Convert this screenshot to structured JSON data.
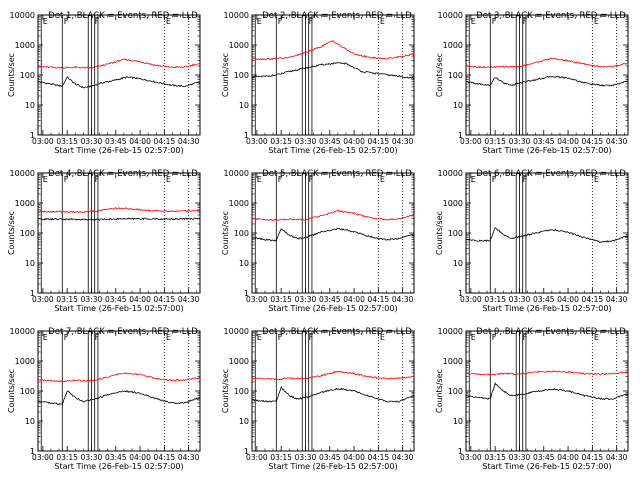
{
  "figure": {
    "xlabel_template": "Start Time ({start})",
    "start": "26-Feb-15 02:57:00",
    "ylabel": "Counts/sec",
    "x_ticks": [
      "03:00",
      "03:15",
      "03:30",
      "03:45",
      "04:00",
      "04:15",
      "04:30"
    ],
    "y_ticks": [
      "1",
      "10",
      "100",
      "1000",
      "10000"
    ],
    "marker_letters": [
      "E",
      "F",
      "F",
      "E"
    ],
    "colors": {
      "events": "#000000",
      "lld": "#ff0000",
      "axes": "#000000"
    }
  },
  "chart_data": [
    {
      "type": "line",
      "title": "Det 1, BLACK = Events, RED = LLD",
      "xlabel": "Start Time (26-Feb-15 02:57:00)",
      "ylabel": "Counts/sec",
      "yscale": "log",
      "ylim": [
        1,
        10000
      ],
      "xlim": [
        "02:57",
        "04:37"
      ],
      "series": [
        {
          "name": "Events",
          "color": "#000000",
          "x": [
            "02:57",
            "03:05",
            "03:12",
            "03:15",
            "03:20",
            "03:25",
            "03:30",
            "03:35",
            "03:45",
            "03:52",
            "04:00",
            "04:10",
            "04:20",
            "04:28",
            "04:35"
          ],
          "y": [
            60,
            50,
            42,
            85,
            50,
            38,
            42,
            52,
            68,
            85,
            75,
            58,
            45,
            42,
            55
          ]
        },
        {
          "name": "LLD",
          "color": "#ff0000",
          "x": [
            "02:57",
            "03:05",
            "03:12",
            "03:20",
            "03:30",
            "03:40",
            "03:50",
            "04:00",
            "04:10",
            "04:20",
            "04:28",
            "04:35"
          ],
          "y": [
            190,
            180,
            175,
            180,
            170,
            230,
            330,
            280,
            210,
            180,
            185,
            230
          ]
        }
      ]
    },
    {
      "type": "line",
      "title": "Det 2, BLACK = Events, RED = LLD",
      "xlabel": "Start Time (26-Feb-15 02:57:00)",
      "ylabel": "Counts/sec",
      "yscale": "log",
      "ylim": [
        1,
        10000
      ],
      "xlim": [
        "02:57",
        "04:37"
      ],
      "series": [
        {
          "name": "Events",
          "color": "#000000",
          "x": [
            "02:57",
            "03:05",
            "03:12",
            "03:20",
            "03:30",
            "03:40",
            "03:50",
            "03:55",
            "04:05",
            "04:15",
            "04:25",
            "04:35"
          ],
          "y": [
            85,
            90,
            100,
            130,
            170,
            220,
            250,
            240,
            130,
            110,
            95,
            80
          ]
        },
        {
          "name": "LLD",
          "color": "#ff0000",
          "x": [
            "02:57",
            "03:05",
            "03:12",
            "03:20",
            "03:30",
            "03:40",
            "03:47",
            "03:52",
            "04:00",
            "04:10",
            "04:20",
            "04:30",
            "04:35"
          ],
          "y": [
            350,
            340,
            350,
            380,
            550,
            900,
            1400,
            900,
            500,
            380,
            350,
            420,
            480
          ]
        }
      ]
    },
    {
      "type": "line",
      "title": "Det 3, BLACK = Events, RED = LLD",
      "xlabel": "Start Time (26-Feb-15 02:57:00)",
      "ylabel": "Counts/sec",
      "yscale": "log",
      "ylim": [
        1,
        10000
      ],
      "xlim": [
        "02:57",
        "04:37"
      ],
      "series": [
        {
          "name": "Events",
          "color": "#000000",
          "x": [
            "02:57",
            "03:05",
            "03:12",
            "03:15",
            "03:20",
            "03:25",
            "03:30",
            "03:40",
            "03:50",
            "04:00",
            "04:10",
            "04:20",
            "04:28",
            "04:35"
          ],
          "y": [
            60,
            50,
            45,
            85,
            55,
            45,
            55,
            70,
            90,
            80,
            55,
            45,
            45,
            60
          ]
        },
        {
          "name": "LLD",
          "color": "#ff0000",
          "x": [
            "02:57",
            "03:05",
            "03:12",
            "03:20",
            "03:30",
            "03:40",
            "03:50",
            "04:00",
            "04:10",
            "04:20",
            "04:28",
            "04:35"
          ],
          "y": [
            200,
            185,
            180,
            190,
            190,
            260,
            360,
            300,
            230,
            190,
            190,
            240
          ]
        }
      ]
    },
    {
      "type": "line",
      "title": "Det 4, BLACK = Events, RED = LLD",
      "xlabel": "Start Time (26-Feb-15 02:57:00)",
      "ylabel": "Counts/sec",
      "yscale": "log",
      "ylim": [
        1,
        10000
      ],
      "xlim": [
        "02:57",
        "04:37"
      ],
      "series": [
        {
          "name": "Events",
          "color": "#000000",
          "x": [
            "02:57",
            "03:15",
            "03:30",
            "03:45",
            "04:00",
            "04:15",
            "04:35"
          ],
          "y": [
            290,
            285,
            280,
            295,
            300,
            290,
            300
          ]
        },
        {
          "name": "LLD",
          "color": "#ff0000",
          "x": [
            "02:57",
            "03:10",
            "03:25",
            "03:35",
            "03:45",
            "03:55",
            "04:05",
            "04:20",
            "04:35"
          ],
          "y": [
            520,
            510,
            500,
            560,
            680,
            640,
            560,
            530,
            560
          ]
        }
      ]
    },
    {
      "type": "line",
      "title": "Det 5, BLACK = Events, RED = LLD",
      "xlabel": "Start Time (26-Feb-15 02:57:00)",
      "ylabel": "Counts/sec",
      "yscale": "log",
      "ylim": [
        1,
        10000
      ],
      "xlim": [
        "02:57",
        "04:37"
      ],
      "series": [
        {
          "name": "Events",
          "color": "#000000",
          "x": [
            "02:57",
            "03:05",
            "03:12",
            "03:15",
            "03:20",
            "03:25",
            "03:30",
            "03:40",
            "03:50",
            "04:00",
            "04:10",
            "04:20",
            "04:28",
            "04:35"
          ],
          "y": [
            70,
            60,
            55,
            140,
            85,
            65,
            70,
            110,
            140,
            110,
            75,
            60,
            65,
            85
          ]
        },
        {
          "name": "LLD",
          "color": "#ff0000",
          "x": [
            "02:57",
            "03:05",
            "03:12",
            "03:20",
            "03:30",
            "03:40",
            "03:50",
            "04:00",
            "04:10",
            "04:20",
            "04:28",
            "04:35"
          ],
          "y": [
            300,
            280,
            270,
            290,
            280,
            380,
            550,
            450,
            320,
            280,
            300,
            380
          ]
        }
      ]
    },
    {
      "type": "line",
      "title": "Det 6, BLACK = Events, RED = LLD",
      "xlabel": "Start Time (26-Feb-15 02:57:00)",
      "ylabel": "Counts/sec",
      "yscale": "log",
      "ylim": [
        1,
        10000
      ],
      "xlim": [
        "02:57",
        "04:37"
      ],
      "series": [
        {
          "name": "Events",
          "color": "#000000",
          "x": [
            "02:57",
            "03:05",
            "03:12",
            "03:15",
            "03:20",
            "03:25",
            "03:30",
            "03:40",
            "03:50",
            "04:00",
            "04:10",
            "04:20",
            "04:28",
            "04:35"
          ],
          "y": [
            60,
            55,
            55,
            150,
            90,
            65,
            75,
            100,
            130,
            105,
            70,
            50,
            55,
            75
          ]
        }
      ]
    },
    {
      "type": "line",
      "title": "Det 7, BLACK = Events, RED = LLD",
      "xlabel": "Start Time (26-Feb-15 02:57:00)",
      "ylabel": "Counts/sec",
      "yscale": "log",
      "ylim": [
        1,
        10000
      ],
      "xlim": [
        "02:57",
        "04:37"
      ],
      "series": [
        {
          "name": "Events",
          "color": "#000000",
          "x": [
            "02:57",
            "03:05",
            "03:12",
            "03:15",
            "03:20",
            "03:25",
            "03:30",
            "03:40",
            "03:50",
            "04:00",
            "04:10",
            "04:20",
            "04:28",
            "04:35"
          ],
          "y": [
            45,
            40,
            35,
            100,
            60,
            45,
            50,
            75,
            100,
            85,
            55,
            40,
            40,
            55
          ]
        },
        {
          "name": "LLD",
          "color": "#ff0000",
          "x": [
            "02:57",
            "03:05",
            "03:12",
            "03:20",
            "03:30",
            "03:40",
            "03:50",
            "04:00",
            "04:10",
            "04:20",
            "04:28",
            "04:35"
          ],
          "y": [
            230,
            220,
            210,
            225,
            220,
            290,
            400,
            350,
            260,
            225,
            230,
            270
          ]
        }
      ]
    },
    {
      "type": "line",
      "title": "Det 8, BLACK = Events, RED = LLD",
      "xlabel": "Start Time (26-Feb-15 02:57:00)",
      "ylabel": "Counts/sec",
      "yscale": "log",
      "ylim": [
        1,
        10000
      ],
      "xlim": [
        "02:57",
        "04:37"
      ],
      "series": [
        {
          "name": "Events",
          "color": "#000000",
          "x": [
            "02:57",
            "03:05",
            "03:12",
            "03:15",
            "03:20",
            "03:25",
            "03:30",
            "03:40",
            "03:50",
            "04:00",
            "04:10",
            "04:20",
            "04:28",
            "04:35"
          ],
          "y": [
            50,
            45,
            45,
            130,
            70,
            55,
            60,
            90,
            120,
            100,
            65,
            45,
            45,
            65
          ]
        },
        {
          "name": "LLD",
          "color": "#ff0000",
          "x": [
            "02:57",
            "03:05",
            "03:12",
            "03:20",
            "03:30",
            "03:40",
            "03:50",
            "04:00",
            "04:10",
            "04:20",
            "04:28",
            "04:35"
          ],
          "y": [
            270,
            260,
            250,
            265,
            260,
            330,
            450,
            380,
            290,
            260,
            265,
            300
          ]
        }
      ]
    },
    {
      "type": "line",
      "title": "Det 9, BLACK = Events, RED = LLD",
      "xlabel": "Start Time (26-Feb-15 02:57:00)",
      "ylabel": "Counts/sec",
      "yscale": "log",
      "ylim": [
        1,
        10000
      ],
      "xlim": [
        "02:57",
        "04:37"
      ],
      "series": [
        {
          "name": "Events",
          "color": "#000000",
          "x": [
            "02:57",
            "03:05",
            "03:12",
            "03:15",
            "03:20",
            "03:25",
            "03:30",
            "03:40",
            "03:50",
            "04:00",
            "04:10",
            "04:20",
            "04:28",
            "04:35"
          ],
          "y": [
            70,
            60,
            55,
            180,
            100,
            70,
            75,
            95,
            115,
            100,
            70,
            55,
            55,
            75
          ]
        },
        {
          "name": "LLD",
          "color": "#ff0000",
          "x": [
            "02:57",
            "03:05",
            "03:12",
            "03:20",
            "03:30",
            "03:40",
            "03:50",
            "04:00",
            "04:10",
            "04:20",
            "04:28",
            "04:35"
          ],
          "y": [
            380,
            360,
            350,
            380,
            370,
            420,
            460,
            430,
            380,
            360,
            380,
            430
          ]
        }
      ]
    }
  ]
}
